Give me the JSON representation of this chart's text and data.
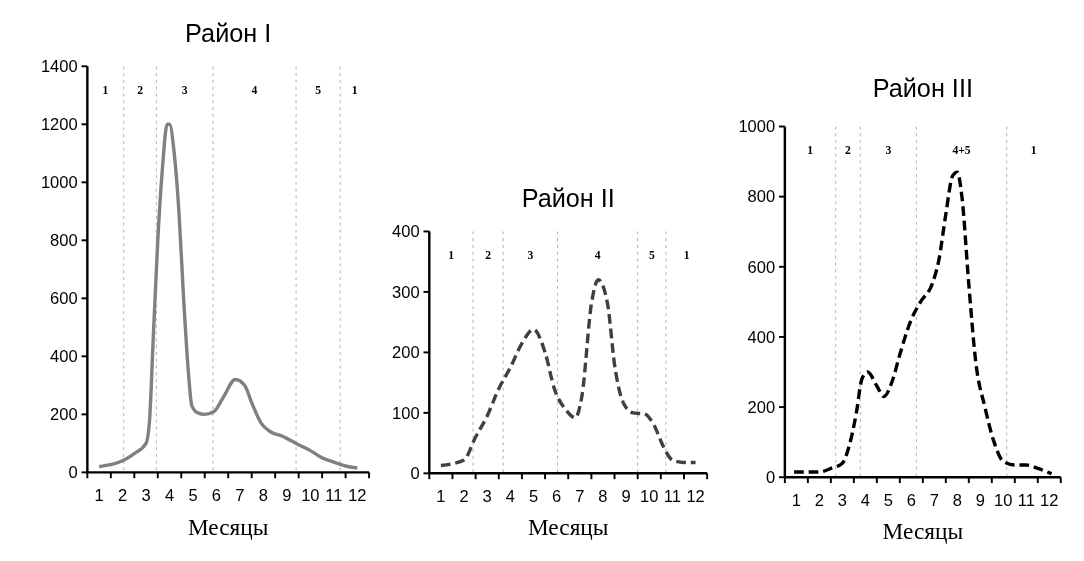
{
  "chart_data": [
    {
      "type": "line",
      "title": "Район I",
      "xlabel": "Месяцы",
      "xlim": [
        0.5,
        12.5
      ],
      "xticks": [
        1,
        2,
        3,
        4,
        5,
        6,
        7,
        8,
        9,
        10,
        11,
        12
      ],
      "ylim": [
        0,
        1400
      ],
      "yticks": [
        0,
        200,
        400,
        600,
        800,
        1000,
        1200,
        1400
      ],
      "marker": "none",
      "ref_lines": [
        {
          "axis": "x",
          "value": 2.05,
          "line_style": "dashed",
          "color": "#999999"
        },
        {
          "axis": "x",
          "value": 3.44,
          "line_style": "dashed",
          "color": "#999999"
        },
        {
          "axis": "x",
          "value": 5.85,
          "line_style": "dashed",
          "color": "#999999"
        },
        {
          "axis": "x",
          "value": 9.39,
          "line_style": "dashed",
          "color": "#999999"
        },
        {
          "axis": "x",
          "value": 11.27,
          "line_style": "dashed",
          "color": "#999999"
        }
      ],
      "annotations": [
        "1",
        "2",
        "3",
        "4",
        "5",
        "1"
      ],
      "series": [
        {
          "color": "#808080",
          "line_style": "solid",
          "x": [
            1,
            2,
            2.5,
            3,
            3.15,
            3.3,
            3.5,
            3.7,
            3.9,
            4,
            4.2,
            4.4,
            4.6,
            4.8,
            4.95,
            5.2,
            5.5,
            5.9,
            6.3,
            6.8,
            7.2,
            7.5,
            7.9,
            8.3,
            8.8,
            9.5,
            10,
            10.5,
            11,
            11.5,
            12
          ],
          "values": [
            20,
            40,
            65,
            100,
            180,
            450,
            800,
            1050,
            1200,
            1200,
            1100,
            900,
            600,
            350,
            230,
            205,
            200,
            210,
            260,
            320,
            300,
            240,
            170,
            140,
            125,
            95,
            75,
            50,
            35,
            22,
            15
          ]
        }
      ]
    },
    {
      "type": "line",
      "title": "Район II",
      "xlabel": "Месяцы",
      "xlim": [
        0.5,
        12.5
      ],
      "xticks": [
        1,
        2,
        3,
        4,
        5,
        6,
        7,
        8,
        9,
        10,
        11,
        12
      ],
      "ylim": [
        0,
        400
      ],
      "yticks": [
        0,
        100,
        200,
        300,
        400
      ],
      "marker": "none",
      "ref_lines": [
        {
          "axis": "x",
          "value": 2.39,
          "line_style": "dashed",
          "color": "#999999"
        },
        {
          "axis": "x",
          "value": 3.69,
          "line_style": "dashed",
          "color": "#999999"
        },
        {
          "axis": "x",
          "value": 6.04,
          "line_style": "dashed",
          "color": "#999999"
        },
        {
          "axis": "x",
          "value": 9.5,
          "line_style": "dashed",
          "color": "#999999"
        },
        {
          "axis": "x",
          "value": 10.72,
          "line_style": "dashed",
          "color": "#999999"
        }
      ],
      "annotations": [
        "1",
        "2",
        "3",
        "4",
        "5",
        "1"
      ],
      "series": [
        {
          "color": "#404040",
          "line_style": "dashed",
          "x": [
            1,
            1.5,
            2,
            2.5,
            3,
            3.5,
            4,
            4.5,
            5,
            5.5,
            5.9,
            6.4,
            6.8,
            7.1,
            7.5,
            7.8,
            8.2,
            8.5,
            8.9,
            9.3,
            9.8,
            10.2,
            10.6,
            11,
            11.5,
            12
          ],
          "values": [
            13,
            16,
            22,
            60,
            95,
            140,
            175,
            215,
            238,
            200,
            140,
            105,
            92,
            130,
            280,
            320,
            280,
            180,
            115,
            100,
            98,
            80,
            45,
            22,
            18,
            18
          ]
        }
      ]
    },
    {
      "type": "line",
      "title": "Район III",
      "xlabel": "Месяцы",
      "xlim": [
        0.5,
        12.5
      ],
      "xticks": [
        1,
        2,
        3,
        4,
        5,
        6,
        7,
        8,
        9,
        10,
        11,
        12
      ],
      "ylim": [
        0,
        1000
      ],
      "yticks": [
        0,
        200,
        400,
        600,
        800,
        1000
      ],
      "marker": "none",
      "ref_lines": [
        {
          "axis": "x",
          "value": 2.71,
          "line_style": "dashed",
          "color": "#999999"
        },
        {
          "axis": "x",
          "value": 3.78,
          "line_style": "dashed",
          "color": "#999999"
        },
        {
          "axis": "x",
          "value": 6.22,
          "line_style": "dashed",
          "color": "#999999"
        },
        {
          "axis": "x",
          "value": 10.15,
          "line_style": "dashed",
          "color": "#999999"
        }
      ],
      "annotations": [
        "1",
        "2",
        "3",
        "4+5",
        "1"
      ],
      "series": [
        {
          "color": "#000000",
          "line_style": "dashed",
          "x": [
            0.9,
            1.5,
            2,
            2.5,
            3,
            3.3,
            3.6,
            3.85,
            4.1,
            4.5,
            4.8,
            5.2,
            5.5,
            6,
            6.4,
            6.9,
            7.2,
            7.5,
            7.8,
            8,
            8.2,
            8.5,
            8.8,
            9.2,
            9.6,
            10,
            10.5,
            11,
            11.5,
            12.1
          ],
          "values": [
            15,
            15,
            15,
            25,
            40,
            90,
            180,
            280,
            300,
            260,
            230,
            280,
            350,
            450,
            500,
            550,
            620,
            750,
            860,
            870,
            800,
            550,
            330,
            200,
            100,
            45,
            35,
            35,
            25,
            10
          ]
        }
      ]
    }
  ]
}
